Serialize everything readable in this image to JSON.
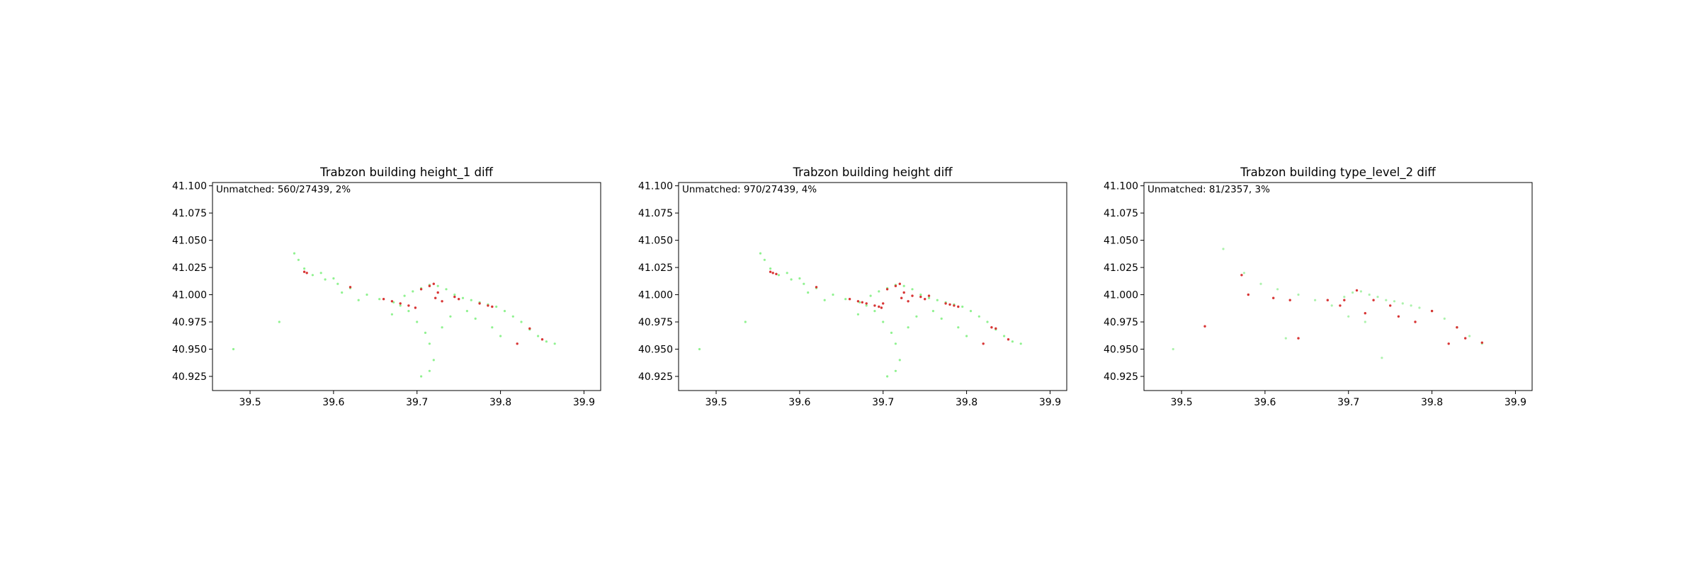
{
  "chart_data": [
    {
      "type": "scatter",
      "title": "Trabzon building height_1 diff",
      "annotation": "Unmatched: 560/27439, 2%",
      "xlim": [
        39.455,
        39.92
      ],
      "ylim": [
        40.912,
        41.103
      ],
      "xticks": [
        39.5,
        39.6,
        39.7,
        39.8,
        39.9
      ],
      "yticks": [
        40.925,
        40.95,
        40.975,
        41.0,
        41.025,
        41.05,
        41.075,
        41.1
      ],
      "xticklabels": [
        "39.5",
        "39.6",
        "39.7",
        "39.8",
        "39.9"
      ],
      "yticklabels": [
        "40.925",
        "40.950",
        "40.975",
        "41.000",
        "41.025",
        "41.050",
        "41.075",
        "41.100"
      ],
      "grid": false,
      "series": [
        {
          "color": "#7cf07c",
          "points": [
            [
              39.553,
              41.038
            ],
            [
              39.558,
              41.032
            ],
            [
              39.565,
              41.024
            ],
            [
              39.575,
              41.018
            ],
            [
              39.59,
              41.014
            ],
            [
              39.605,
              41.01
            ],
            [
              39.62,
              41.006
            ],
            [
              39.64,
              41.0
            ],
            [
              39.655,
              40.996
            ],
            [
              39.672,
              40.993
            ],
            [
              39.685,
              40.999
            ],
            [
              39.695,
              41.003
            ],
            [
              39.705,
              41.006
            ],
            [
              39.715,
              41.009
            ],
            [
              39.725,
              41.008
            ],
            [
              39.735,
              41.005
            ],
            [
              39.745,
              41.0
            ],
            [
              39.755,
              40.997
            ],
            [
              39.765,
              40.995
            ],
            [
              39.775,
              40.993
            ],
            [
              39.785,
              40.991
            ],
            [
              39.795,
              40.989
            ],
            [
              39.805,
              40.985
            ],
            [
              39.815,
              40.98
            ],
            [
              39.825,
              40.975
            ],
            [
              39.835,
              40.968
            ],
            [
              39.845,
              40.962
            ],
            [
              39.855,
              40.957
            ],
            [
              39.865,
              40.955
            ],
            [
              39.69,
              40.985
            ],
            [
              39.7,
              40.975
            ],
            [
              39.71,
              40.965
            ],
            [
              39.715,
              40.955
            ],
            [
              39.72,
              40.94
            ],
            [
              39.715,
              40.93
            ],
            [
              39.705,
              40.925
            ],
            [
              39.73,
              40.97
            ],
            [
              39.74,
              40.98
            ],
            [
              39.68,
              40.99
            ],
            [
              39.67,
              40.982
            ],
            [
              39.76,
              40.985
            ],
            [
              39.77,
              40.978
            ],
            [
              39.79,
              40.97
            ],
            [
              39.8,
              40.962
            ],
            [
              39.61,
              41.002
            ],
            [
              39.63,
              40.995
            ],
            [
              39.535,
              40.975
            ],
            [
              39.48,
              40.95
            ],
            [
              39.6,
              41.015
            ],
            [
              39.585,
              41.02
            ]
          ]
        },
        {
          "color": "#d62a2a",
          "points": [
            [
              39.565,
              41.021
            ],
            [
              39.568,
              41.02
            ],
            [
              39.62,
              41.007
            ],
            [
              39.67,
              40.994
            ],
            [
              39.68,
              40.992
            ],
            [
              39.69,
              40.99
            ],
            [
              39.698,
              40.988
            ],
            [
              39.715,
              41.008
            ],
            [
              39.72,
              41.01
            ],
            [
              39.725,
              41.002
            ],
            [
              39.722,
              40.997
            ],
            [
              39.73,
              40.994
            ],
            [
              39.745,
              40.998
            ],
            [
              39.75,
              40.996
            ],
            [
              39.775,
              40.992
            ],
            [
              39.785,
              40.99
            ],
            [
              39.79,
              40.989
            ],
            [
              39.835,
              40.969
            ],
            [
              39.85,
              40.959
            ],
            [
              39.82,
              40.955
            ],
            [
              39.66,
              40.996
            ],
            [
              39.705,
              41.005
            ]
          ]
        }
      ]
    },
    {
      "type": "scatter",
      "title": "Trabzon building height diff",
      "annotation": "Unmatched: 970/27439, 4%",
      "xlim": [
        39.455,
        39.92
      ],
      "ylim": [
        40.912,
        41.103
      ],
      "xticks": [
        39.5,
        39.6,
        39.7,
        39.8,
        39.9
      ],
      "yticks": [
        40.925,
        40.95,
        40.975,
        41.0,
        41.025,
        41.05,
        41.075,
        41.1
      ],
      "xticklabels": [
        "39.5",
        "39.6",
        "39.7",
        "39.8",
        "39.9"
      ],
      "yticklabels": [
        "40.925",
        "40.950",
        "40.975",
        "41.000",
        "41.025",
        "41.050",
        "41.075",
        "41.100"
      ],
      "grid": false,
      "series": [
        {
          "color": "#7cf07c",
          "points": [
            [
              39.553,
              41.038
            ],
            [
              39.558,
              41.032
            ],
            [
              39.565,
              41.024
            ],
            [
              39.575,
              41.018
            ],
            [
              39.59,
              41.014
            ],
            [
              39.605,
              41.01
            ],
            [
              39.62,
              41.006
            ],
            [
              39.64,
              41.0
            ],
            [
              39.655,
              40.996
            ],
            [
              39.672,
              40.993
            ],
            [
              39.685,
              40.999
            ],
            [
              39.695,
              41.003
            ],
            [
              39.705,
              41.006
            ],
            [
              39.715,
              41.009
            ],
            [
              39.725,
              41.008
            ],
            [
              39.735,
              41.005
            ],
            [
              39.745,
              41.0
            ],
            [
              39.755,
              40.997
            ],
            [
              39.765,
              40.995
            ],
            [
              39.775,
              40.993
            ],
            [
              39.785,
              40.991
            ],
            [
              39.795,
              40.989
            ],
            [
              39.805,
              40.985
            ],
            [
              39.815,
              40.98
            ],
            [
              39.825,
              40.975
            ],
            [
              39.835,
              40.968
            ],
            [
              39.845,
              40.962
            ],
            [
              39.855,
              40.957
            ],
            [
              39.865,
              40.955
            ],
            [
              39.69,
              40.985
            ],
            [
              39.7,
              40.975
            ],
            [
              39.71,
              40.965
            ],
            [
              39.715,
              40.955
            ],
            [
              39.72,
              40.94
            ],
            [
              39.715,
              40.93
            ],
            [
              39.705,
              40.925
            ],
            [
              39.73,
              40.97
            ],
            [
              39.74,
              40.98
            ],
            [
              39.68,
              40.99
            ],
            [
              39.67,
              40.982
            ],
            [
              39.76,
              40.985
            ],
            [
              39.77,
              40.978
            ],
            [
              39.79,
              40.97
            ],
            [
              39.8,
              40.962
            ],
            [
              39.61,
              41.002
            ],
            [
              39.63,
              40.995
            ],
            [
              39.535,
              40.975
            ],
            [
              39.48,
              40.95
            ],
            [
              39.6,
              41.015
            ],
            [
              39.585,
              41.02
            ]
          ]
        },
        {
          "color": "#d62a2a",
          "points": [
            [
              39.565,
              41.021
            ],
            [
              39.568,
              41.02
            ],
            [
              39.572,
              41.019
            ],
            [
              39.62,
              41.007
            ],
            [
              39.67,
              40.994
            ],
            [
              39.675,
              40.993
            ],
            [
              39.68,
              40.992
            ],
            [
              39.69,
              40.99
            ],
            [
              39.695,
              40.989
            ],
            [
              39.698,
              40.988
            ],
            [
              39.715,
              41.008
            ],
            [
              39.72,
              41.01
            ],
            [
              39.725,
              41.002
            ],
            [
              39.722,
              40.997
            ],
            [
              39.73,
              40.994
            ],
            [
              39.735,
              40.999
            ],
            [
              39.745,
              40.998
            ],
            [
              39.75,
              40.996
            ],
            [
              39.755,
              40.999
            ],
            [
              39.775,
              40.992
            ],
            [
              39.78,
              40.991
            ],
            [
              39.785,
              40.99
            ],
            [
              39.79,
              40.989
            ],
            [
              39.83,
              40.97
            ],
            [
              39.835,
              40.969
            ],
            [
              39.85,
              40.959
            ],
            [
              39.82,
              40.955
            ],
            [
              39.66,
              40.996
            ],
            [
              39.705,
              41.005
            ],
            [
              39.7,
              40.992
            ]
          ]
        }
      ]
    },
    {
      "type": "scatter",
      "title": "Trabzon building type_level_2 diff",
      "annotation": "Unmatched: 81/2357, 3%",
      "xlim": [
        39.455,
        39.92
      ],
      "ylim": [
        40.912,
        41.103
      ],
      "xticks": [
        39.5,
        39.6,
        39.7,
        39.8,
        39.9
      ],
      "yticks": [
        40.925,
        40.95,
        40.975,
        41.0,
        41.025,
        41.05,
        41.075,
        41.1
      ],
      "xticklabels": [
        "39.5",
        "39.6",
        "39.7",
        "39.8",
        "39.9"
      ],
      "yticklabels": [
        "40.925",
        "40.950",
        "40.975",
        "41.000",
        "41.025",
        "41.050",
        "41.075",
        "41.100"
      ],
      "grid": false,
      "series": [
        {
          "color": "#9ef09e",
          "points": [
            [
              39.55,
              41.042
            ],
            [
              39.575,
              41.02
            ],
            [
              39.595,
              41.01
            ],
            [
              39.615,
              41.005
            ],
            [
              39.64,
              41.0
            ],
            [
              39.66,
              40.995
            ],
            [
              39.68,
              40.99
            ],
            [
              39.695,
              40.998
            ],
            [
              39.705,
              41.002
            ],
            [
              39.715,
              41.003
            ],
            [
              39.725,
              41.0
            ],
            [
              39.735,
              40.998
            ],
            [
              39.745,
              40.995
            ],
            [
              39.755,
              40.994
            ],
            [
              39.765,
              40.992
            ],
            [
              39.775,
              40.99
            ],
            [
              39.785,
              40.988
            ],
            [
              39.8,
              40.985
            ],
            [
              39.815,
              40.978
            ],
            [
              39.83,
              40.97
            ],
            [
              39.845,
              40.962
            ],
            [
              39.86,
              40.955
            ],
            [
              39.7,
              40.98
            ],
            [
              39.72,
              40.975
            ],
            [
              39.74,
              40.942
            ],
            [
              39.625,
              40.96
            ],
            [
              39.49,
              40.95
            ]
          ]
        },
        {
          "color": "#d62a2a",
          "points": [
            [
              39.528,
              40.971
            ],
            [
              39.572,
              41.018
            ],
            [
              39.58,
              41.0
            ],
            [
              39.61,
              40.997
            ],
            [
              39.63,
              40.995
            ],
            [
              39.64,
              40.96
            ],
            [
              39.675,
              40.995
            ],
            [
              39.69,
              40.99
            ],
            [
              39.71,
              41.004
            ],
            [
              39.72,
              40.983
            ],
            [
              39.73,
              40.995
            ],
            [
              39.75,
              40.99
            ],
            [
              39.76,
              40.98
            ],
            [
              39.78,
              40.975
            ],
            [
              39.8,
              40.985
            ],
            [
              39.83,
              40.97
            ],
            [
              39.84,
              40.96
            ],
            [
              39.82,
              40.955
            ],
            [
              39.86,
              40.956
            ],
            [
              39.695,
              40.995
            ]
          ]
        }
      ]
    }
  ]
}
